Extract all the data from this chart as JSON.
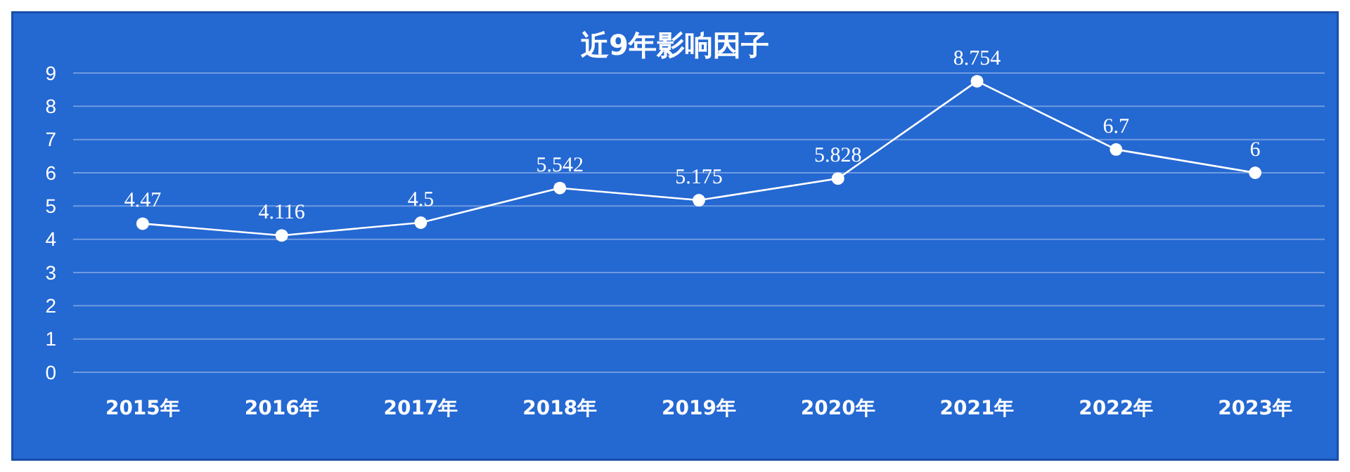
{
  "chart_data": {
    "type": "line",
    "title": "近9年影响因子",
    "categories": [
      "2015年",
      "2016年",
      "2017年",
      "2018年",
      "2019年",
      "2020年",
      "2021年",
      "2022年",
      "2023年"
    ],
    "series": [
      {
        "color": "#ffffff",
        "values": [
          4.47,
          4.116,
          4.5,
          5.542,
          5.175,
          5.828,
          8.754,
          6.7,
          6
        ]
      }
    ],
    "ylim": [
      0,
      9
    ],
    "yticks": [
      0,
      1,
      2,
      3,
      4,
      5,
      6,
      7,
      8,
      9
    ],
    "grid": "y",
    "marker": "circle",
    "line_style": "solid",
    "data_labels": true
  }
}
